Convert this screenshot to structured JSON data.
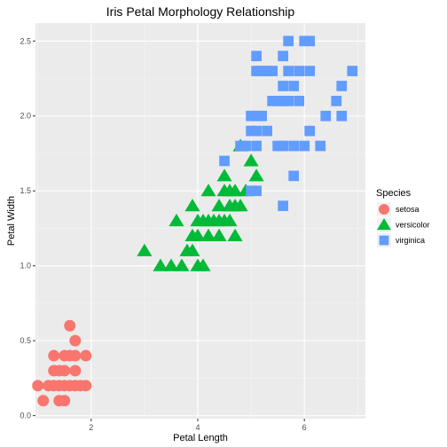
{
  "chart_data": {
    "type": "scatter",
    "title": "Iris Petal Morphology Relationship",
    "xlabel": "Petal Length",
    "ylabel": "Petal Width",
    "xlim": [
      0.955,
      7.145
    ],
    "ylim": [
      -0.02,
      2.62
    ],
    "x_ticks": [
      2,
      4,
      6
    ],
    "y_ticks": [
      0.0,
      0.5,
      1.0,
      1.5,
      2.0,
      2.5
    ],
    "x_tick_labels": [
      "2",
      "4",
      "6"
    ],
    "y_tick_labels": [
      "0.0",
      "0.5",
      "1.0",
      "1.5",
      "2.0",
      "2.5"
    ],
    "grid": true,
    "legend": {
      "title": "Species",
      "placement": "right",
      "entries": [
        {
          "label": "setosa",
          "shape": "circle",
          "color": "#f8766d"
        },
        {
          "label": "versicolor",
          "shape": "triangle",
          "color": "#00ba38"
        },
        {
          "label": "virginica",
          "shape": "square",
          "color": "#619cff"
        }
      ]
    },
    "series": [
      {
        "name": "setosa",
        "shape": "circle",
        "color": "#f8766d",
        "points": [
          [
            1.0,
            0.2
          ],
          [
            1.1,
            0.1
          ],
          [
            1.2,
            0.2
          ],
          [
            1.3,
            0.2
          ],
          [
            1.3,
            0.3
          ],
          [
            1.3,
            0.4
          ],
          [
            1.4,
            0.1
          ],
          [
            1.4,
            0.2
          ],
          [
            1.4,
            0.3
          ],
          [
            1.5,
            0.1
          ],
          [
            1.5,
            0.2
          ],
          [
            1.5,
            0.3
          ],
          [
            1.5,
            0.4
          ],
          [
            1.6,
            0.2
          ],
          [
            1.6,
            0.4
          ],
          [
            1.6,
            0.6
          ],
          [
            1.7,
            0.2
          ],
          [
            1.7,
            0.3
          ],
          [
            1.7,
            0.4
          ],
          [
            1.7,
            0.5
          ],
          [
            1.8,
            0.2
          ],
          [
            1.9,
            0.2
          ],
          [
            1.9,
            0.4
          ]
        ]
      },
      {
        "name": "versicolor",
        "shape": "triangle",
        "color": "#00ba38",
        "points": [
          [
            3.0,
            1.1
          ],
          [
            3.3,
            1.0
          ],
          [
            3.5,
            1.0
          ],
          [
            3.6,
            1.3
          ],
          [
            3.7,
            1.0
          ],
          [
            3.8,
            1.1
          ],
          [
            3.9,
            1.1
          ],
          [
            3.9,
            1.2
          ],
          [
            3.9,
            1.4
          ],
          [
            4.0,
            1.0
          ],
          [
            4.0,
            1.2
          ],
          [
            4.0,
            1.3
          ],
          [
            4.1,
            1.0
          ],
          [
            4.1,
            1.3
          ],
          [
            4.2,
            1.2
          ],
          [
            4.2,
            1.3
          ],
          [
            4.2,
            1.5
          ],
          [
            4.3,
            1.3
          ],
          [
            4.4,
            1.2
          ],
          [
            4.4,
            1.3
          ],
          [
            4.4,
            1.4
          ],
          [
            4.5,
            1.3
          ],
          [
            4.5,
            1.5
          ],
          [
            4.5,
            1.6
          ],
          [
            4.6,
            1.3
          ],
          [
            4.6,
            1.4
          ],
          [
            4.6,
            1.5
          ],
          [
            4.7,
            1.2
          ],
          [
            4.7,
            1.4
          ],
          [
            4.7,
            1.5
          ],
          [
            4.8,
            1.4
          ],
          [
            4.8,
            1.8
          ],
          [
            4.9,
            1.5
          ],
          [
            5.0,
            1.7
          ],
          [
            5.1,
            1.6
          ]
        ]
      },
      {
        "name": "virginica",
        "shape": "square",
        "color": "#619cff",
        "points": [
          [
            4.5,
            1.7
          ],
          [
            4.8,
            1.8
          ],
          [
            4.9,
            1.8
          ],
          [
            5.0,
            1.5
          ],
          [
            5.0,
            1.9
          ],
          [
            5.0,
            2.0
          ],
          [
            5.1,
            1.5
          ],
          [
            5.1,
            1.8
          ],
          [
            5.1,
            1.9
          ],
          [
            5.1,
            2.0
          ],
          [
            5.1,
            2.3
          ],
          [
            5.1,
            2.4
          ],
          [
            5.2,
            2.0
          ],
          [
            5.2,
            2.3
          ],
          [
            5.3,
            1.9
          ],
          [
            5.3,
            2.3
          ],
          [
            5.4,
            2.1
          ],
          [
            5.4,
            2.3
          ],
          [
            5.5,
            1.8
          ],
          [
            5.5,
            2.1
          ],
          [
            5.6,
            1.4
          ],
          [
            5.6,
            1.8
          ],
          [
            5.6,
            2.1
          ],
          [
            5.6,
            2.2
          ],
          [
            5.6,
            2.4
          ],
          [
            5.7,
            2.1
          ],
          [
            5.7,
            2.3
          ],
          [
            5.7,
            2.5
          ],
          [
            5.8,
            1.6
          ],
          [
            5.8,
            1.8
          ],
          [
            5.8,
            2.2
          ],
          [
            5.9,
            2.1
          ],
          [
            5.9,
            2.3
          ],
          [
            6.0,
            1.8
          ],
          [
            6.0,
            2.5
          ],
          [
            6.1,
            1.9
          ],
          [
            6.1,
            2.3
          ],
          [
            6.1,
            2.5
          ],
          [
            6.3,
            1.8
          ],
          [
            6.4,
            2.0
          ],
          [
            6.6,
            2.1
          ],
          [
            6.7,
            2.0
          ],
          [
            6.7,
            2.2
          ],
          [
            6.9,
            2.3
          ]
        ]
      }
    ]
  }
}
